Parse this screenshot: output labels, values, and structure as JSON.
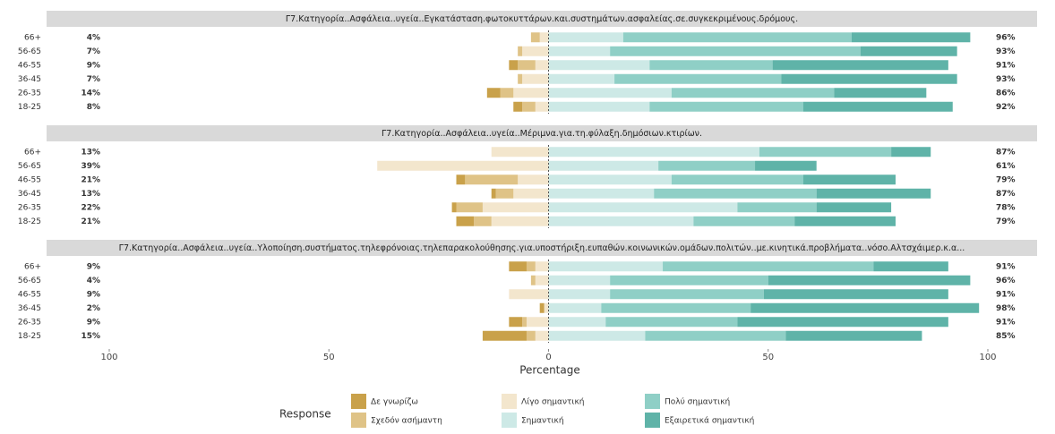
{
  "chart_data": {
    "type": "diverging_bar",
    "xlabel": "Percentage",
    "legend_title": "Response",
    "xlim": [
      -100,
      100
    ],
    "xticks": [
      {
        "value": -100,
        "label": "100"
      },
      {
        "value": -50,
        "label": "50"
      },
      0,
      50,
      100
    ],
    "series": [
      {
        "name": "Δε γνωρίζω",
        "color": "#c9a14a",
        "side": "left"
      },
      {
        "name": "Σχεδόν ασήμαντη",
        "color": "#dfc387",
        "side": "left"
      },
      {
        "name": "Λίγο σημαντική",
        "color": "#f3e6cd",
        "side": "left"
      },
      {
        "name": "Σημαντική",
        "color": "#cde9e6",
        "side": "right"
      },
      {
        "name": "Πολύ σημαντική",
        "color": "#8fcfc6",
        "side": "right"
      },
      {
        "name": "Εξαιρετικά σημαντική",
        "color": "#5fb3a8",
        "side": "right"
      }
    ],
    "panels": [
      {
        "title": "Γ7.Κατηγορία..Ασφάλεια..υγεία..Εγκατάσταση.φωτοκυττάρων.και.συστημάτων.ασφαλείας.σε.συγκεκριμένους.δρόμους.",
        "categories": [
          "66+",
          "56-65",
          "46-55",
          "36-45",
          "26-35",
          "18-25"
        ],
        "values": [
          [
            0,
            0,
            2,
            0,
            3,
            2
          ],
          [
            2,
            1,
            4,
            1,
            3,
            3
          ],
          [
            2,
            6,
            3,
            6,
            8,
            3
          ],
          [
            17,
            14,
            23,
            15,
            28,
            23
          ],
          [
            52,
            57,
            28,
            38,
            37,
            35
          ],
          [
            27,
            22,
            40,
            40,
            21,
            34
          ]
        ],
        "left_labels": [
          "4%",
          "7%",
          "9%",
          "7%",
          "14%",
          "8%"
        ],
        "right_labels": [
          "96%",
          "93%",
          "91%",
          "93%",
          "86%",
          "92%"
        ]
      },
      {
        "title": "Γ7.Κατηγορία..Ασφάλεια..υγεία..Μέριμνα.για.τη.φύλαξη.δημόσιων.κτιρίων.",
        "categories": [
          "66+",
          "56-65",
          "46-55",
          "36-45",
          "26-35",
          "18-25"
        ],
        "values": [
          [
            0,
            0,
            2,
            1,
            1,
            4
          ],
          [
            0,
            0,
            12,
            4,
            6,
            4
          ],
          [
            13,
            39,
            7,
            8,
            15,
            13
          ],
          [
            48,
            25,
            28,
            24,
            43,
            33
          ],
          [
            30,
            22,
            30,
            37,
            18,
            23
          ],
          [
            9,
            14,
            21,
            26,
            17,
            23
          ]
        ],
        "left_labels": [
          "13%",
          "39%",
          "21%",
          "13%",
          "22%",
          "21%"
        ],
        "right_labels": [
          "87%",
          "61%",
          "79%",
          "87%",
          "78%",
          "79%"
        ]
      },
      {
        "title": "Γ7.Κατηγορία..Ασφάλεια..υγεία..Υλοποίηση.συστήματος.τηλεφρόνοιας.τηλεπαρακολούθησης.για.υποστήριξη.ευπαθών.κοινωνικών.ομάδων.πολιτών..με.κινητικά.προβλήματα..νόσο.Αλτσχάιμερ.κ.α...",
        "categories": [
          "66+",
          "56-65",
          "46-55",
          "36-45",
          "26-35",
          "18-25"
        ],
        "values": [
          [
            4,
            0,
            0,
            1,
            3,
            10
          ],
          [
            2,
            1,
            0,
            0,
            1,
            2
          ],
          [
            3,
            3,
            9,
            1,
            5,
            3
          ],
          [
            26,
            14,
            14,
            12,
            13,
            22
          ],
          [
            48,
            36,
            35,
            34,
            30,
            32
          ],
          [
            17,
            46,
            42,
            52,
            48,
            31
          ]
        ],
        "left_labels": [
          "9%",
          "4%",
          "9%",
          "2%",
          "9%",
          "15%"
        ],
        "right_labels": [
          "91%",
          "96%",
          "91%",
          "98%",
          "91%",
          "85%"
        ]
      }
    ]
  }
}
